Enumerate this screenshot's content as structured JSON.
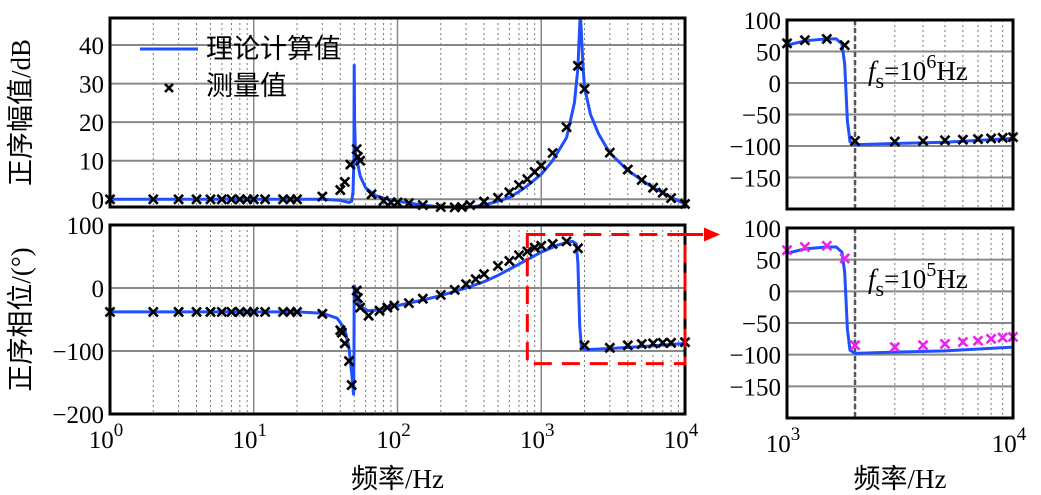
{
  "chart_data": [
    {
      "type": "line",
      "panel": "magnitude",
      "ylabel": "正序幅值/dB",
      "xscale": "log",
      "xlim": [
        1,
        10000
      ],
      "ylim": [
        -2,
        47
      ],
      "yticks": [
        0,
        10,
        20,
        30,
        40
      ],
      "ytick_labels": [
        "0",
        "10",
        "20",
        "30",
        "40"
      ],
      "grid": true,
      "legend": {
        "position": "top-left",
        "entries": [
          "理论计算值",
          "测量值"
        ]
      },
      "series": [
        {
          "name": "理论计算值",
          "style": "line",
          "color": "#1f4fff",
          "points": [
            [
              1,
              0
            ],
            [
              10,
              0
            ],
            [
              30,
              0
            ],
            [
              40,
              -0.3
            ],
            [
              46,
              -0.8
            ],
            [
              48,
              -0.5
            ],
            [
              49,
              2
            ],
            [
              49.7,
              10
            ],
            [
              50,
              35
            ],
            [
              50.3,
              20
            ],
            [
              51,
              12
            ],
            [
              53,
              9
            ],
            [
              55,
              6
            ],
            [
              60,
              3
            ],
            [
              70,
              1
            ],
            [
              80,
              0.3
            ],
            [
              100,
              -0.5
            ],
            [
              150,
              -1.5
            ],
            [
              200,
              -2
            ],
            [
              300,
              -2.2
            ],
            [
              400,
              -1.5
            ],
            [
              500,
              -0.5
            ],
            [
              600,
              0.5
            ],
            [
              700,
              2
            ],
            [
              800,
              3.5
            ],
            [
              1000,
              6.5
            ],
            [
              1200,
              10
            ],
            [
              1500,
              16
            ],
            [
              1700,
              25
            ],
            [
              1800,
              34
            ],
            [
              1850,
              45
            ],
            [
              1870,
              48
            ],
            [
              1890,
              45
            ],
            [
              1950,
              35
            ],
            [
              2000,
              29
            ],
            [
              2200,
              22
            ],
            [
              2500,
              17
            ],
            [
              3000,
              12
            ],
            [
              4000,
              7.5
            ],
            [
              5000,
              5
            ],
            [
              6000,
              3
            ],
            [
              7000,
              1.8
            ],
            [
              8000,
              0.5
            ],
            [
              10000,
              -1.2
            ]
          ]
        },
        {
          "name": "测量值",
          "style": "marker",
          "color": "#000000",
          "points": [
            [
              1,
              0
            ],
            [
              2,
              0
            ],
            [
              3,
              0
            ],
            [
              4,
              0
            ],
            [
              5,
              0
            ],
            [
              6,
              0
            ],
            [
              7,
              0
            ],
            [
              8,
              0
            ],
            [
              9,
              0
            ],
            [
              10,
              0
            ],
            [
              12,
              0
            ],
            [
              16,
              0
            ],
            [
              18,
              0
            ],
            [
              20,
              0
            ],
            [
              30,
              0.7
            ],
            [
              40,
              2.4
            ],
            [
              43,
              4.5
            ],
            [
              47,
              9
            ],
            [
              52,
              13
            ],
            [
              53,
              11
            ],
            [
              55,
              10
            ],
            [
              66,
              1.3
            ],
            [
              80,
              -0.4
            ],
            [
              90,
              -0.8
            ],
            [
              100,
              -0.8
            ],
            [
              120,
              -1
            ],
            [
              150,
              -1.5
            ],
            [
              200,
              -2
            ],
            [
              250,
              -2.1
            ],
            [
              280,
              -2
            ],
            [
              320,
              -1.5
            ],
            [
              400,
              -0.6
            ],
            [
              500,
              0.4
            ],
            [
              600,
              1.8
            ],
            [
              700,
              3.7
            ],
            [
              800,
              5.2
            ],
            [
              900,
              7.1
            ],
            [
              1000,
              8.7
            ],
            [
              1200,
              12
            ],
            [
              1500,
              18.7
            ],
            [
              1800,
              34.6
            ],
            [
              2000,
              28.6
            ],
            [
              3000,
              12.1
            ],
            [
              4000,
              7.7
            ],
            [
              5000,
              5
            ],
            [
              6000,
              3
            ],
            [
              7000,
              1.7
            ],
            [
              8000,
              0.3
            ],
            [
              10000,
              -1.2
            ]
          ]
        }
      ]
    },
    {
      "type": "line",
      "panel": "phase",
      "ylabel": "正序相位/(°)",
      "xlabel": "频率/Hz",
      "xscale": "log",
      "xlim": [
        1,
        10000
      ],
      "ylim": [
        -200,
        100
      ],
      "yticks": [
        100,
        0,
        -100,
        -200
      ],
      "ytick_labels": [
        "100",
        "0",
        "−100",
        "−200"
      ],
      "xtick_labels": [
        {
          "base": "10",
          "exp": "0"
        },
        {
          "base": "10",
          "exp": "1"
        },
        {
          "base": "10",
          "exp": "2"
        },
        {
          "base": "10",
          "exp": "3"
        },
        {
          "base": "10",
          "exp": "4"
        }
      ],
      "grid": true,
      "highlight_box": {
        "xrange": [
          800,
          10000
        ],
        "yrange": [
          -120,
          85
        ],
        "color": "#ff0000"
      },
      "series": [
        {
          "name": "理论计算值",
          "style": "line",
          "color": "#1f4fff",
          "points": [
            [
              1,
              -38
            ],
            [
              20,
              -38
            ],
            [
              30,
              -40
            ],
            [
              38,
              -48
            ],
            [
              43,
              -65
            ],
            [
              46,
              -95
            ],
            [
              48,
              -135
            ],
            [
              49.5,
              -170
            ],
            [
              49.8,
              -100
            ],
            [
              50,
              5
            ],
            [
              51,
              -5
            ],
            [
              53,
              -20
            ],
            [
              56,
              -30
            ],
            [
              62,
              -36
            ],
            [
              70,
              -35
            ],
            [
              100,
              -28
            ],
            [
              150,
              -19
            ],
            [
              200,
              -12
            ],
            [
              300,
              0
            ],
            [
              400,
              10
            ],
            [
              500,
              20
            ],
            [
              700,
              38
            ],
            [
              1000,
              57
            ],
            [
              1300,
              68
            ],
            [
              1500,
              72
            ],
            [
              1650,
              74
            ],
            [
              1750,
              70
            ],
            [
              1800,
              40
            ],
            [
              1850,
              -60
            ],
            [
              1900,
              -93
            ],
            [
              2000,
              -98
            ],
            [
              3000,
              -96
            ],
            [
              5000,
              -93
            ],
            [
              10000,
              -88
            ]
          ]
        },
        {
          "name": "测量值",
          "style": "marker",
          "color": "#000000",
          "points": [
            [
              1,
              -38
            ],
            [
              2,
              -38
            ],
            [
              3,
              -38
            ],
            [
              4,
              -38
            ],
            [
              5,
              -38
            ],
            [
              6,
              -38
            ],
            [
              7,
              -38
            ],
            [
              8,
              -38
            ],
            [
              9,
              -38
            ],
            [
              10,
              -38
            ],
            [
              12,
              -38
            ],
            [
              16,
              -38
            ],
            [
              18,
              -38
            ],
            [
              20,
              -38
            ],
            [
              30,
              -41
            ],
            [
              40,
              -67
            ],
            [
              41,
              -71
            ],
            [
              43,
              -88
            ],
            [
              46,
              -116
            ],
            [
              48,
              -154
            ],
            [
              52,
              -4
            ],
            [
              53,
              -16
            ],
            [
              55,
              -31
            ],
            [
              63,
              -44
            ],
            [
              75,
              -36
            ],
            [
              85,
              -31
            ],
            [
              95,
              -28
            ],
            [
              120,
              -24
            ],
            [
              150,
              -17
            ],
            [
              200,
              -11
            ],
            [
              250,
              -3
            ],
            [
              300,
              6
            ],
            [
              350,
              14
            ],
            [
              400,
              22
            ],
            [
              500,
              35
            ],
            [
              600,
              43
            ],
            [
              700,
              52
            ],
            [
              800,
              58
            ],
            [
              900,
              64
            ],
            [
              1000,
              67
            ],
            [
              1200,
              70
            ],
            [
              1500,
              74
            ],
            [
              1800,
              63
            ],
            [
              2000,
              -91
            ],
            [
              3000,
              -95
            ],
            [
              4000,
              -91
            ],
            [
              5000,
              -89
            ],
            [
              6000,
              -88
            ],
            [
              7000,
              -87
            ],
            [
              8000,
              -87
            ],
            [
              10000,
              -86
            ]
          ]
        }
      ]
    },
    {
      "type": "line",
      "panel": "zoom-fs-1e6",
      "xscale": "log",
      "xlim": [
        1000,
        10000
      ],
      "ylim": [
        -200,
        100
      ],
      "yticks": [
        100,
        50,
        0,
        -50,
        -100,
        -150
      ],
      "ytick_labels": [
        "100",
        "50",
        "0",
        "−50",
        "−100",
        "−150"
      ],
      "annotation": {
        "f": "f",
        "sub": "s",
        "eq": "=10",
        "exp": "6",
        "unit": "Hz"
      },
      "vline": 2000,
      "grid": true,
      "series": [
        {
          "style": "line",
          "color": "#1f4fff",
          "points": [
            [
              1000,
              60
            ],
            [
              1200,
              67
            ],
            [
              1500,
              70
            ],
            [
              1650,
              70
            ],
            [
              1750,
              62
            ],
            [
              1800,
              30
            ],
            [
              1850,
              -60
            ],
            [
              1900,
              -93
            ],
            [
              2000,
              -98
            ],
            [
              3000,
              -96
            ],
            [
              5000,
              -94
            ],
            [
              10000,
              -88
            ]
          ]
        },
        {
          "style": "marker",
          "color": "#000000",
          "points": [
            [
              1000,
              63
            ],
            [
              1200,
              68
            ],
            [
              1500,
              70
            ],
            [
              1800,
              60
            ],
            [
              2000,
              -92
            ],
            [
              3000,
              -93
            ],
            [
              4000,
              -92
            ],
            [
              5000,
              -91
            ],
            [
              6000,
              -90
            ],
            [
              7000,
              -89
            ],
            [
              8000,
              -88
            ],
            [
              9000,
              -87
            ],
            [
              10000,
              -86
            ]
          ]
        }
      ]
    },
    {
      "type": "line",
      "panel": "zoom-fs-1e5",
      "xlabel": "频率/Hz",
      "xscale": "log",
      "xlim": [
        1000,
        10000
      ],
      "ylim": [
        -200,
        100
      ],
      "yticks": [
        100,
        50,
        0,
        -50,
        -100,
        -150
      ],
      "ytick_labels": [
        "100",
        "50",
        "0",
        "−50",
        "−100",
        "−150"
      ],
      "xtick_labels": [
        {
          "base": "10",
          "exp": "3"
        },
        {
          "base": "10",
          "exp": "4"
        }
      ],
      "annotation": {
        "f": "f",
        "sub": "s",
        "eq": "=10",
        "exp": "5",
        "unit": "Hz"
      },
      "vline": 2000,
      "grid": true,
      "series": [
        {
          "style": "line",
          "color": "#1f4fff",
          "points": [
            [
              1000,
              60
            ],
            [
              1200,
              67
            ],
            [
              1500,
              70
            ],
            [
              1650,
              70
            ],
            [
              1750,
              62
            ],
            [
              1800,
              30
            ],
            [
              1850,
              -60
            ],
            [
              1900,
              -93
            ],
            [
              2000,
              -98
            ],
            [
              3000,
              -96
            ],
            [
              5000,
              -94
            ],
            [
              10000,
              -88
            ]
          ]
        },
        {
          "style": "marker",
          "color": "#ee22ee",
          "points": [
            [
              1000,
              65
            ],
            [
              1200,
              70
            ],
            [
              1500,
              72
            ],
            [
              1800,
              52
            ],
            [
              2000,
              -85
            ],
            [
              3000,
              -88
            ],
            [
              4000,
              -85
            ],
            [
              5000,
              -83
            ],
            [
              6000,
              -80
            ],
            [
              7000,
              -78
            ],
            [
              8000,
              -75
            ],
            [
              9000,
              -73
            ],
            [
              10000,
              -72
            ]
          ]
        }
      ]
    }
  ]
}
